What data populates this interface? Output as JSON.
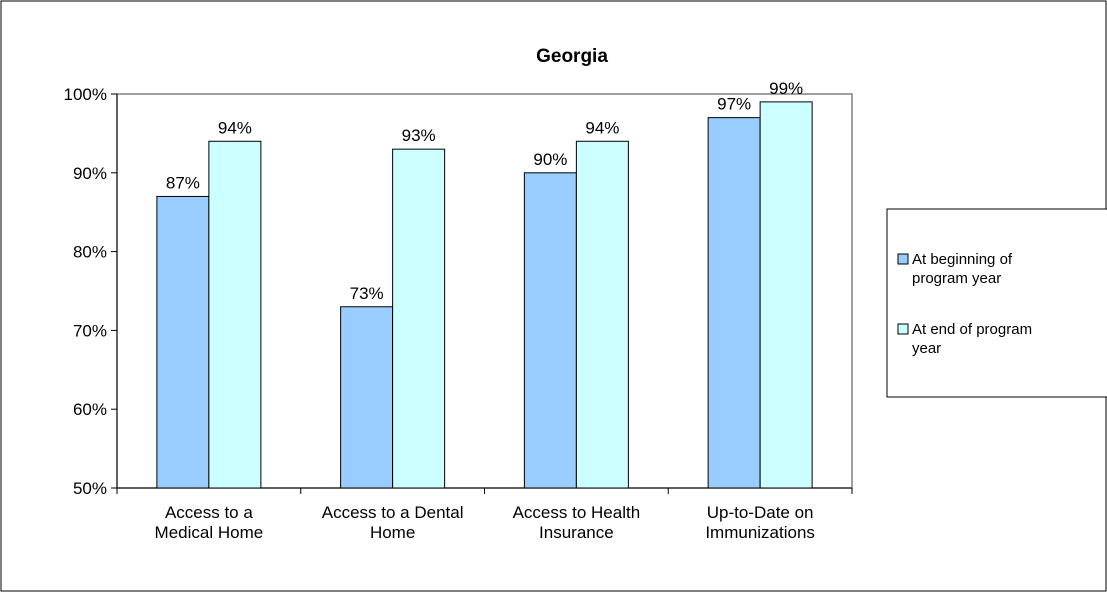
{
  "chart_data": {
    "type": "bar",
    "title": "Georgia",
    "categories": [
      [
        "Access to a",
        "Medical Home"
      ],
      [
        "Access to a Dental",
        "Home"
      ],
      [
        "Access to Health",
        "Insurance"
      ],
      [
        "Up-to-Date on",
        "Immunizations"
      ]
    ],
    "series": [
      {
        "name": [
          "At beginning of",
          "program year"
        ],
        "values": [
          87,
          73,
          90,
          97
        ],
        "labels": [
          "87%",
          "73%",
          "90%",
          "97%"
        ]
      },
      {
        "name": [
          "At end of program",
          "year"
        ],
        "values": [
          94,
          93,
          94,
          99
        ],
        "labels": [
          "94%",
          "93%",
          "94%",
          "99%"
        ]
      }
    ],
    "ylim": [
      50,
      100
    ],
    "yticks": [
      50,
      60,
      70,
      80,
      90,
      100
    ],
    "ytick_labels": [
      "50%",
      "60%",
      "70%",
      "80%",
      "90%",
      "100%"
    ],
    "xlabel": "",
    "ylabel": "",
    "grid": false,
    "legend_position": "right",
    "colors": {
      "series_0": "#99ccff",
      "series_1": "#ccffff",
      "border": "#000000",
      "plot_border": "#808080"
    }
  }
}
